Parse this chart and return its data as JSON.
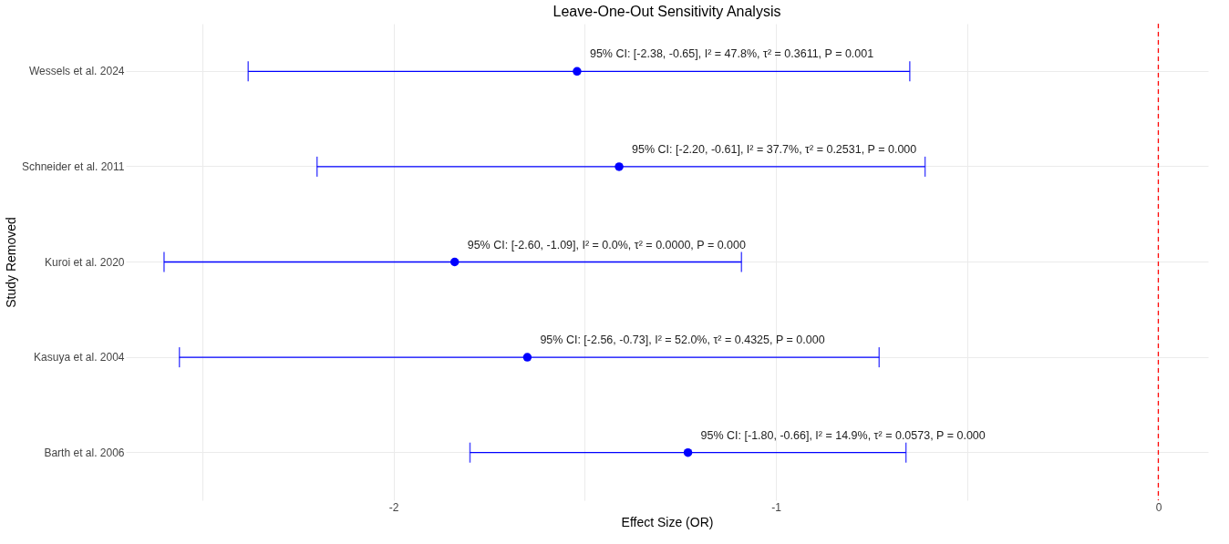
{
  "chart_data": {
    "type": "scatter",
    "orientation": "horizontal",
    "title": "Leave-One-Out Sensitivity Analysis",
    "xlabel": "Effect Size (OR)",
    "ylabel": "Study Removed",
    "categories": [
      "Wessels et al. 2024",
      "Schneider et al. 2011",
      "Kuroi et al. 2020",
      "Kasuya et al. 2004",
      "Barth et al. 2006"
    ],
    "series": [
      {
        "color": "#0000ff",
        "values": [
          -1.52,
          -1.41,
          -1.84,
          -1.65,
          -1.23
        ],
        "errors": [
          [
            -2.38,
            -0.65
          ],
          [
            -2.2,
            -0.61
          ],
          [
            -2.6,
            -1.09
          ],
          [
            -2.56,
            -0.73
          ],
          [
            -1.8,
            -0.66
          ]
        ]
      }
    ],
    "marker": "circle",
    "xlim": [
      -2.7,
      0.13
    ],
    "xticks": [
      {
        "value": -2.5,
        "label": null
      },
      -2,
      {
        "value": -1.5,
        "label": null
      },
      -1,
      {
        "value": -0.5,
        "label": null
      },
      0
    ],
    "grid": true,
    "ref_lines": [
      {
        "axis": "x",
        "value": 0,
        "color": "#ff0000",
        "line_style": "dashed"
      }
    ],
    "annotations": [
      "95% CI: [-2.38, -0.65], I² = 47.8%, τ² = 0.3611, P = 0.001",
      "95% CI: [-2.20, -0.61], I² = 37.7%, τ² = 0.2531, P = 0.000",
      "95% CI: [-2.60, -1.09], I² = 0.0%, τ² = 0.0000, P = 0.000",
      "95% CI: [-2.56, -0.73], I² = 52.0%, τ² = 0.4325, P = 0.000",
      "95% CI: [-1.80, -0.66], I² = 14.9%, τ² = 0.0573, P = 0.000"
    ]
  }
}
